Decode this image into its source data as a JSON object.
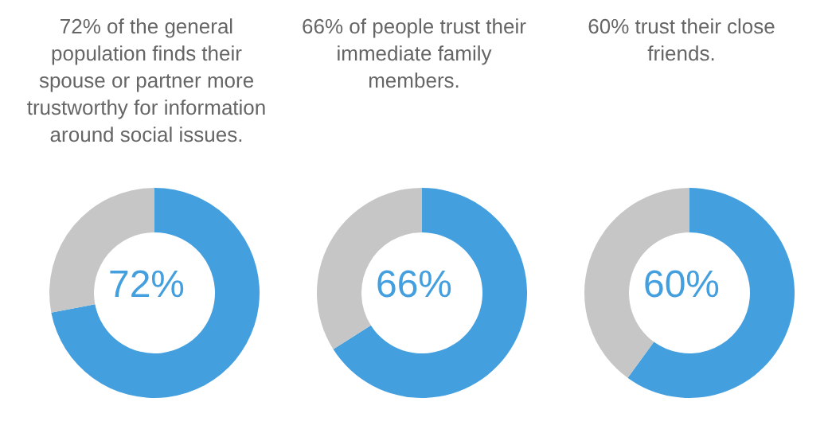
{
  "chart_data": [
    {
      "type": "donut",
      "title": "72% of the general population finds their spouse or partner more trustworthy for information around social issues.",
      "categories": [
        null,
        null
      ],
      "values": [
        72,
        28
      ],
      "colors": [
        "#449fde",
        "#c6c6c6"
      ],
      "annotations": [
        "72%"
      ]
    },
    {
      "type": "donut",
      "title": "66% of people trust their immediate family members.",
      "categories": [
        null,
        null
      ],
      "values": [
        66,
        34
      ],
      "colors": [
        "#449fde",
        "#c6c6c6"
      ],
      "annotations": [
        "66%"
      ]
    },
    {
      "type": "donut",
      "title": "60% trust their close friends.",
      "categories": [
        null,
        null
      ],
      "values": [
        60,
        40
      ],
      "colors": [
        "#449fde",
        "#c6c6c6"
      ],
      "annotations": [
        "60%"
      ]
    }
  ]
}
